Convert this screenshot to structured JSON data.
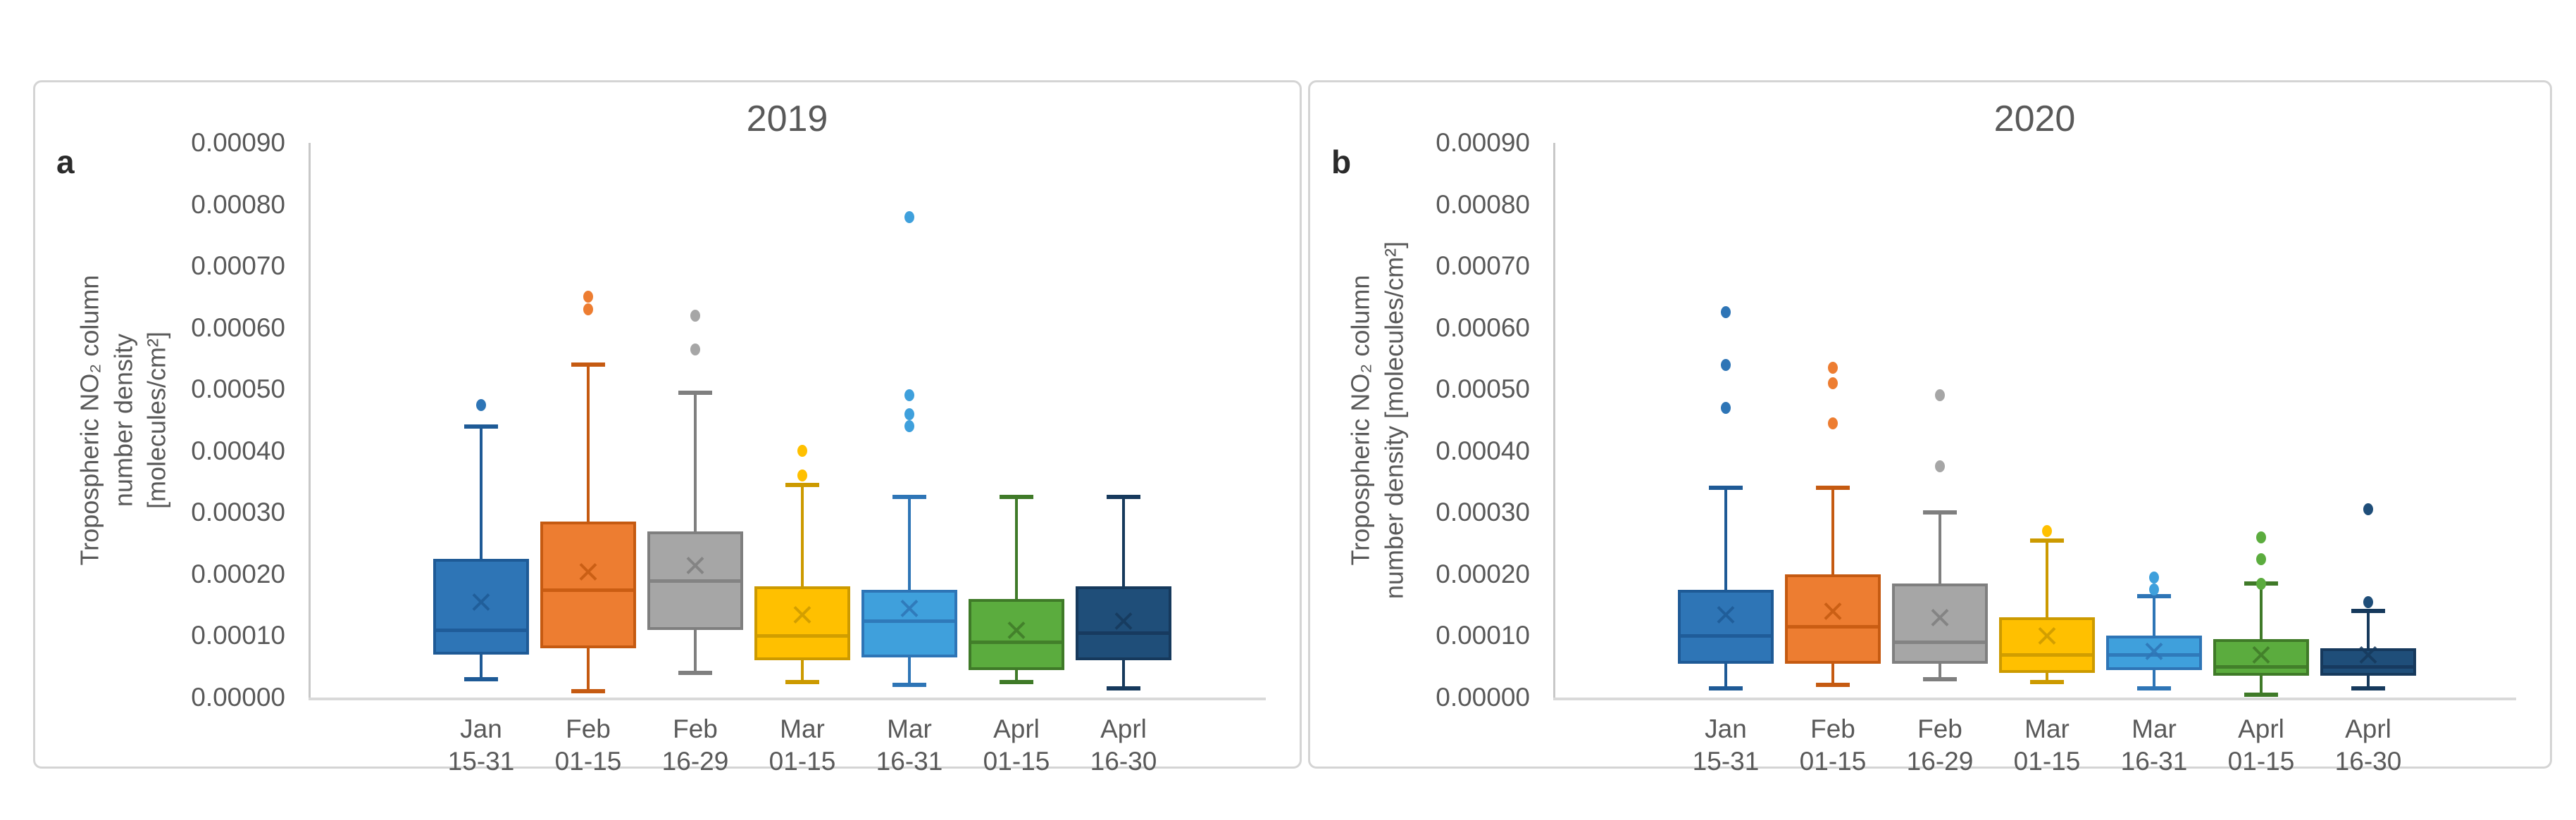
{
  "styles": {
    "panel_border": "#d4d4d4",
    "axis_line_color": "#d9d9d9",
    "axis_y_line_color": "#c8c8c8",
    "text_color": "#595959",
    "corner_label_color": "#2b2b2b"
  },
  "chart_data": [
    {
      "type": "box",
      "panel_label": "a",
      "title": "2019",
      "y_axis_title_lines": [
        "Tropospheric NO₂ column",
        "number density",
        "[molecules/cm²]"
      ],
      "y_ticks": [
        "0.00000",
        "0.00010",
        "0.00020",
        "0.00030",
        "0.00040",
        "0.00050",
        "0.00060",
        "0.00070",
        "0.00080",
        "0.00090"
      ],
      "ylim": [
        0,
        0.0009
      ],
      "grid": false,
      "legend": "none",
      "categories": [
        [
          "Jan",
          "15-31"
        ],
        [
          "Feb",
          "01-15"
        ],
        [
          "Feb",
          "16-29"
        ],
        [
          "Mar",
          "01-15"
        ],
        [
          "Mar",
          "16-31"
        ],
        [
          "Aprl",
          "01-15"
        ],
        [
          "Aprl",
          "16-30"
        ]
      ],
      "series": [
        {
          "name": "Jan 15-31",
          "fill": "#2e75b6",
          "stroke": "#1e5a96",
          "whisker_low": 3e-05,
          "q1": 7e-05,
          "median": 0.00011,
          "mean": 0.000155,
          "q3": 0.000225,
          "whisker_high": 0.00044,
          "outliers": [
            0.000475
          ]
        },
        {
          "name": "Feb 01-15",
          "fill": "#ed7d31",
          "stroke": "#c55a11",
          "whisker_low": 1e-05,
          "q1": 8e-05,
          "median": 0.000175,
          "mean": 0.000205,
          "q3": 0.000285,
          "whisker_high": 0.00054,
          "outliers": [
            0.00063,
            0.00065
          ]
        },
        {
          "name": "Feb 16-29",
          "fill": "#a6a6a6",
          "stroke": "#7f7f7f",
          "whisker_low": 4e-05,
          "q1": 0.00011,
          "median": 0.00019,
          "mean": 0.000215,
          "q3": 0.00027,
          "whisker_high": 0.000495,
          "outliers": [
            0.000565,
            0.00062
          ]
        },
        {
          "name": "Mar 01-15",
          "fill": "#ffc000",
          "stroke": "#cc9a00",
          "whisker_low": 2.5e-05,
          "q1": 6e-05,
          "median": 0.0001,
          "mean": 0.000135,
          "q3": 0.00018,
          "whisker_high": 0.000345,
          "outliers": [
            0.00036,
            0.0004
          ]
        },
        {
          "name": "Mar 16-31",
          "fill": "#3fa0dc",
          "stroke": "#2e75b6",
          "whisker_low": 2e-05,
          "q1": 6.5e-05,
          "median": 0.000125,
          "mean": 0.000145,
          "q3": 0.000175,
          "whisker_high": 0.000325,
          "outliers": [
            0.00044,
            0.00046,
            0.00049,
            0.00078
          ]
        },
        {
          "name": "Aprl 01-15",
          "fill": "#5bac3e",
          "stroke": "#3f7a28",
          "whisker_low": 2.5e-05,
          "q1": 4.5e-05,
          "median": 9e-05,
          "mean": 0.00011,
          "q3": 0.00016,
          "whisker_high": 0.000325,
          "outliers": []
        },
        {
          "name": "Aprl 16-30",
          "fill": "#1f4e79",
          "stroke": "#16395c",
          "whisker_low": 1.5e-05,
          "q1": 6e-05,
          "median": 0.000105,
          "mean": 0.000125,
          "q3": 0.00018,
          "whisker_high": 0.000325,
          "outliers": []
        }
      ]
    },
    {
      "type": "box",
      "panel_label": "b",
      "title": "2020",
      "y_axis_title_lines": [
        "Tropospheric NO₂ column",
        "number density [molecules/cm²]"
      ],
      "y_ticks": [
        "0.00000",
        "0.00010",
        "0.00020",
        "0.00030",
        "0.00040",
        "0.00050",
        "0.00060",
        "0.00070",
        "0.00080",
        "0.00090"
      ],
      "ylim": [
        0,
        0.0009
      ],
      "grid": false,
      "legend": "none",
      "categories": [
        [
          "Jan",
          "15-31"
        ],
        [
          "Feb",
          "01-15"
        ],
        [
          "Feb",
          "16-29"
        ],
        [
          "Mar",
          "01-15"
        ],
        [
          "Mar",
          "16-31"
        ],
        [
          "Aprl",
          "01-15"
        ],
        [
          "Aprl",
          "16-30"
        ]
      ],
      "series": [
        {
          "name": "Jan 15-31",
          "fill": "#2e75b6",
          "stroke": "#1e5a96",
          "whisker_low": 1.5e-05,
          "q1": 5.5e-05,
          "median": 0.0001,
          "mean": 0.000135,
          "q3": 0.000175,
          "whisker_high": 0.00034,
          "outliers": [
            0.00047,
            0.00054,
            0.000625
          ]
        },
        {
          "name": "Feb 01-15",
          "fill": "#ed7d31",
          "stroke": "#c55a11",
          "whisker_low": 2e-05,
          "q1": 5.5e-05,
          "median": 0.000115,
          "mean": 0.00014,
          "q3": 0.0002,
          "whisker_high": 0.00034,
          "outliers": [
            0.000445,
            0.00051,
            0.000535
          ]
        },
        {
          "name": "Feb 16-29",
          "fill": "#a6a6a6",
          "stroke": "#7f7f7f",
          "whisker_low": 3e-05,
          "q1": 5.5e-05,
          "median": 9e-05,
          "mean": 0.00013,
          "q3": 0.000185,
          "whisker_high": 0.0003,
          "outliers": [
            0.000375,
            0.00049
          ]
        },
        {
          "name": "Mar 01-15",
          "fill": "#ffc000",
          "stroke": "#cc9a00",
          "whisker_low": 2.5e-05,
          "q1": 4e-05,
          "median": 7e-05,
          "mean": 0.0001,
          "q3": 0.00013,
          "whisker_high": 0.000255,
          "outliers": [
            0.00027
          ]
        },
        {
          "name": "Mar 16-31",
          "fill": "#3fa0dc",
          "stroke": "#2e75b6",
          "whisker_low": 1.5e-05,
          "q1": 4.5e-05,
          "median": 7e-05,
          "mean": 7.5e-05,
          "q3": 0.0001,
          "whisker_high": 0.000165,
          "outliers": [
            0.000175,
            0.000195
          ]
        },
        {
          "name": "Aprl 01-15",
          "fill": "#5bac3e",
          "stroke": "#3f7a28",
          "whisker_low": 5e-06,
          "q1": 3.5e-05,
          "median": 5e-05,
          "mean": 7e-05,
          "q3": 9.5e-05,
          "whisker_high": 0.000185,
          "outliers": [
            0.000185,
            0.000225,
            0.00026
          ]
        },
        {
          "name": "Aprl 16-30",
          "fill": "#1f4e79",
          "stroke": "#16395c",
          "whisker_low": 1.5e-05,
          "q1": 3.5e-05,
          "median": 5e-05,
          "mean": 7e-05,
          "q3": 8e-05,
          "whisker_high": 0.00014,
          "outliers": [
            0.000155,
            0.000305
          ]
        }
      ]
    }
  ]
}
